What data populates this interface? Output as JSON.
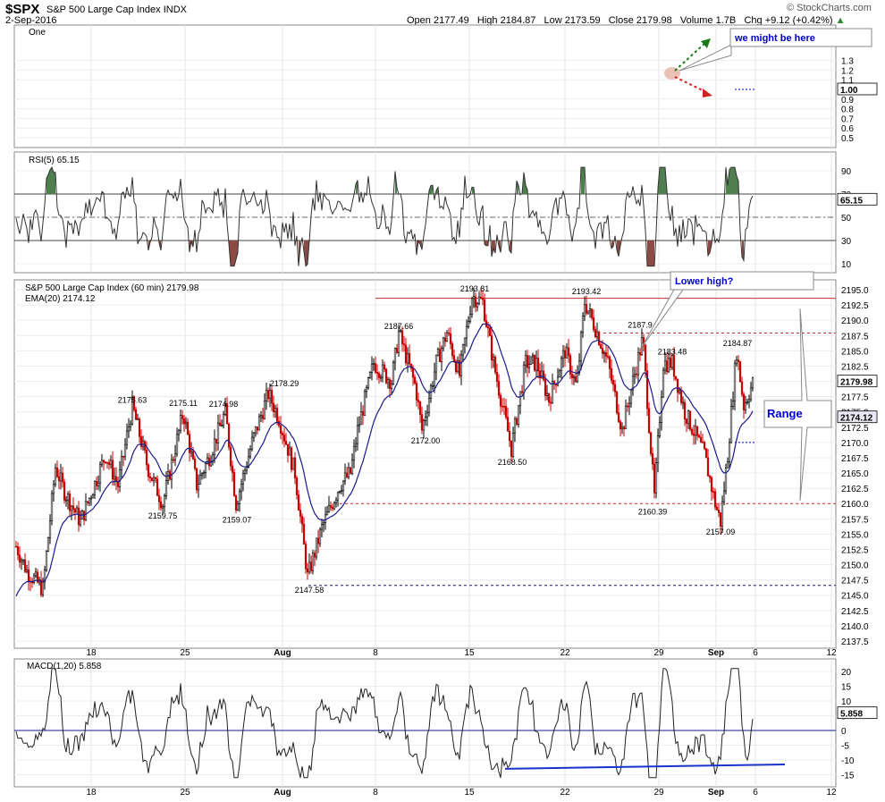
{
  "header": {
    "symbol": "$SPX",
    "name": "S&P 500 Large Cap Index",
    "exchange": "INDX",
    "date": "2-Sep-2016",
    "open_label": "Open",
    "open": "2177.49",
    "high_label": "High",
    "high": "2184.87",
    "low_label": "Low",
    "low": "2173.59",
    "close_label": "Close",
    "close": "2179.98",
    "volume_label": "Volume",
    "volume": "1.7B",
    "chg_label": "Chg",
    "chg": "+9.12 (+0.42%)",
    "brand": "© StockCharts.com"
  },
  "panels": {
    "one": {
      "label": "One",
      "ticks": [
        "1.3",
        "1.2",
        "1.1",
        "1.00",
        "0.9",
        "0.8",
        "0.7",
        "0.6",
        "0.5"
      ],
      "current": "1.00"
    },
    "rsi": {
      "label": "RSI(5) 65.15",
      "ticks": [
        "90",
        "70",
        "50",
        "30",
        "10"
      ],
      "current": "65.15"
    },
    "price": {
      "label": "S&P 500 Large Cap Index (60 min) 2179.98",
      "ema_label": "EMA(20) 2174.12",
      "ticks": [
        "2195.0",
        "2192.5",
        "2190.0",
        "2187.5",
        "2185.0",
        "2182.5",
        "2180.0",
        "2177.5",
        "2175.0",
        "2172.5",
        "2170.0",
        "2167.5",
        "2165.0",
        "2162.5",
        "2160.0",
        "2157.5",
        "2155.0",
        "2152.5",
        "2150.0",
        "2147.5",
        "2145.0",
        "2142.5",
        "2140.0",
        "2137.5"
      ],
      "current_price": "2179.98",
      "current_ema": "2174.12"
    },
    "macd": {
      "label": "MACD(1,20) 5.858",
      "ticks": [
        "20",
        "15",
        "10",
        "5",
        "0",
        "-5",
        "-10",
        "-15"
      ],
      "current": "5.858"
    }
  },
  "x_axis_labels": [
    "18",
    "25",
    "Aug",
    "8",
    "15",
    "22",
    "29",
    "Sep",
    "6",
    "12"
  ],
  "annotations": {
    "we_might": "we might be here",
    "lower_high": "Lower high?",
    "range": "Range"
  },
  "price_labels": [
    "2175.63",
    "2175.11",
    "2174.98",
    "2178.29",
    "2159.75",
    "2159.07",
    "2147.58",
    "2187.66",
    "2172.00",
    "2193.81",
    "2168.50",
    "2193.42",
    "2187.9",
    "2183.48",
    "2160.39",
    "2184.87",
    "2157.09"
  ],
  "colors": {
    "up": "#000000",
    "down": "#cc0000",
    "ema": "#1a1a8c",
    "rsi_fill": "#4f7f4f",
    "rsi_low_fill": "#8c4a45",
    "annot_text": "#0000cc"
  },
  "chart_data": {
    "type": "line",
    "title": "S&P 500 Large Cap Index (60 min)",
    "x_labels": [
      "18",
      "25",
      "Aug",
      "8",
      "15",
      "22",
      "29",
      "Sep",
      "6",
      "12"
    ],
    "series": [
      {
        "name": "S&P 500 Large Cap Index (60 min)",
        "labelled_points": [
          {
            "x": "Jul 21",
            "y": 2175.63
          },
          {
            "x": "Jul 25",
            "y": 2175.11
          },
          {
            "x": "Jul 27",
            "y": 2174.98
          },
          {
            "x": "Jul 29",
            "y": 2178.29
          },
          {
            "x": "Jul 22",
            "y": 2159.75
          },
          {
            "x": "Jul 27",
            "y": 2159.07
          },
          {
            "x": "Aug 2",
            "y": 2147.58
          },
          {
            "x": "Aug 9",
            "y": 2187.66
          },
          {
            "x": "Aug 11",
            "y": 2172.0
          },
          {
            "x": "Aug 15",
            "y": 2193.81
          },
          {
            "x": "Aug 18",
            "y": 2168.5
          },
          {
            "x": "Aug 23",
            "y": 2193.42
          },
          {
            "x": "Aug 26",
            "y": 2187.9
          },
          {
            "x": "Aug 30",
            "y": 2183.48
          },
          {
            "x": "Aug 29",
            "y": 2160.39
          },
          {
            "x": "Sep 2",
            "y": 2184.87
          },
          {
            "x": "Sep 1",
            "y": 2157.09
          }
        ]
      },
      {
        "name": "EMA(20)",
        "last": 2174.12
      },
      {
        "name": "RSI(5)",
        "last": 65.15
      },
      {
        "name": "MACD(1,20)",
        "last": 5.858
      }
    ],
    "ylim_price": [
      2136,
      2197
    ],
    "ylim_rsi": [
      0,
      100
    ],
    "ylim_macd": [
      -17,
      23
    ],
    "grid": true
  }
}
